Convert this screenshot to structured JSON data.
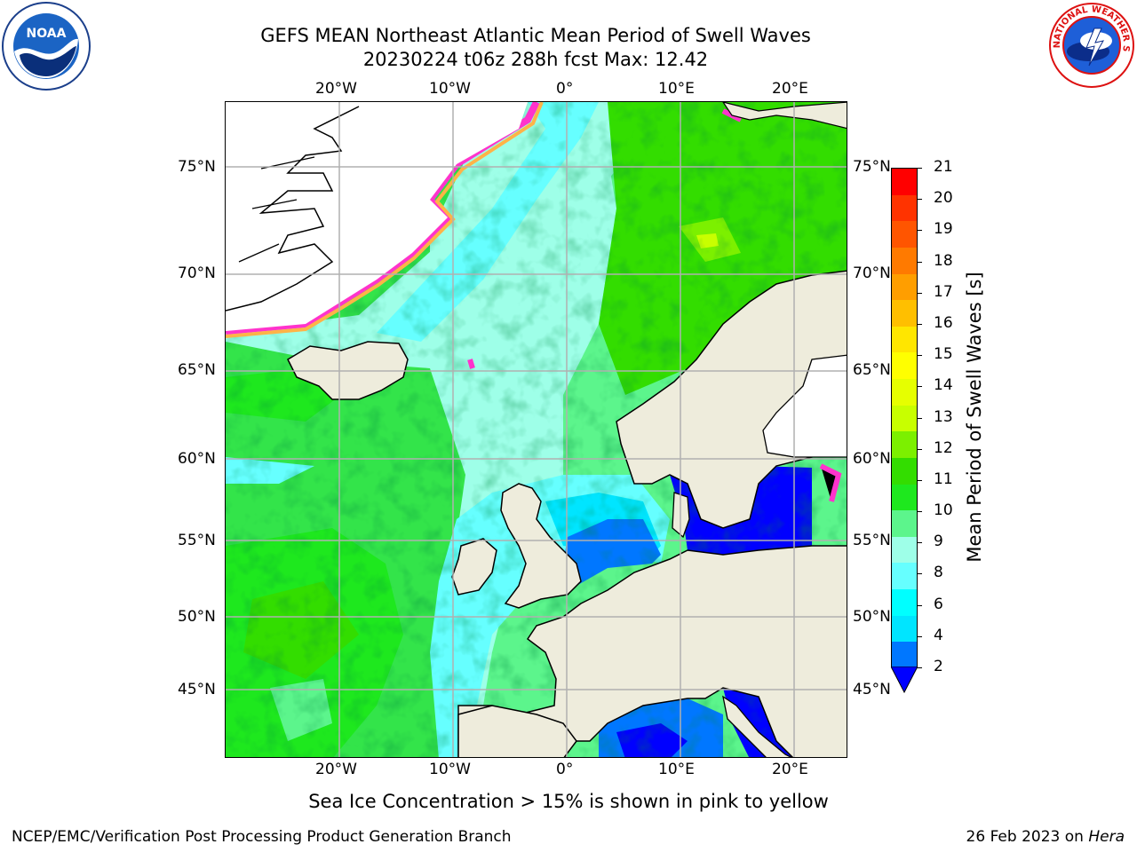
{
  "header": {
    "title_line1": "GEFS MEAN Northeast Atlantic Mean Period of Swell Waves",
    "title_line2": "20230224 t06z 288h fcst   Max: 12.42"
  },
  "logos": {
    "left": {
      "name": "NOAA",
      "text": "NOAA"
    },
    "right": {
      "name": "National Weather Service",
      "text": "NATIONAL WEATHER SERVICE"
    }
  },
  "map": {
    "top_lon_ticks": [
      "20°W",
      "10°W",
      "0°",
      "10°E",
      "20°E"
    ],
    "bottom_lon_ticks": [
      "20°W",
      "10°W",
      "0°",
      "10°E",
      "20°E"
    ],
    "left_lat_ticks": [
      "75°N",
      "70°N",
      "65°N",
      "60°N",
      "55°N",
      "50°N",
      "45°N"
    ],
    "right_lat_ticks": [
      "75°N",
      "70°N",
      "65°N",
      "60°N",
      "55°N",
      "50°N",
      "45°N"
    ],
    "land_color": "#eeecdc",
    "ice_note": "Sea Ice Concentration > 15% is shown in pink to yellow"
  },
  "colorbar": {
    "label": "Mean Period of Swell Waves [s]",
    "ticks": [
      "21",
      "20",
      "19",
      "18",
      "17",
      "16",
      "15",
      "14",
      "13",
      "12",
      "11",
      "10",
      "9",
      "8",
      "6",
      "4",
      "2"
    ],
    "colors": [
      "#ff0000",
      "#ff3300",
      "#ff5500",
      "#ff7a00",
      "#ff9e00",
      "#ffbf00",
      "#ffe600",
      "#ffff00",
      "#e6ff00",
      "#c8ff00",
      "#7cf000",
      "#33dd00",
      "#1ee81e",
      "#5cf58c",
      "#9effe8",
      "#66ffff",
      "#00ffff",
      "#00e5ff",
      "#0077ff"
    ],
    "under_color": "#0000ff"
  },
  "footer": {
    "left": "NCEP/EMC/Verification Post Processing Product Generation Branch",
    "right_date": "26 Feb 2023 on ",
    "right_host": "Hera"
  }
}
